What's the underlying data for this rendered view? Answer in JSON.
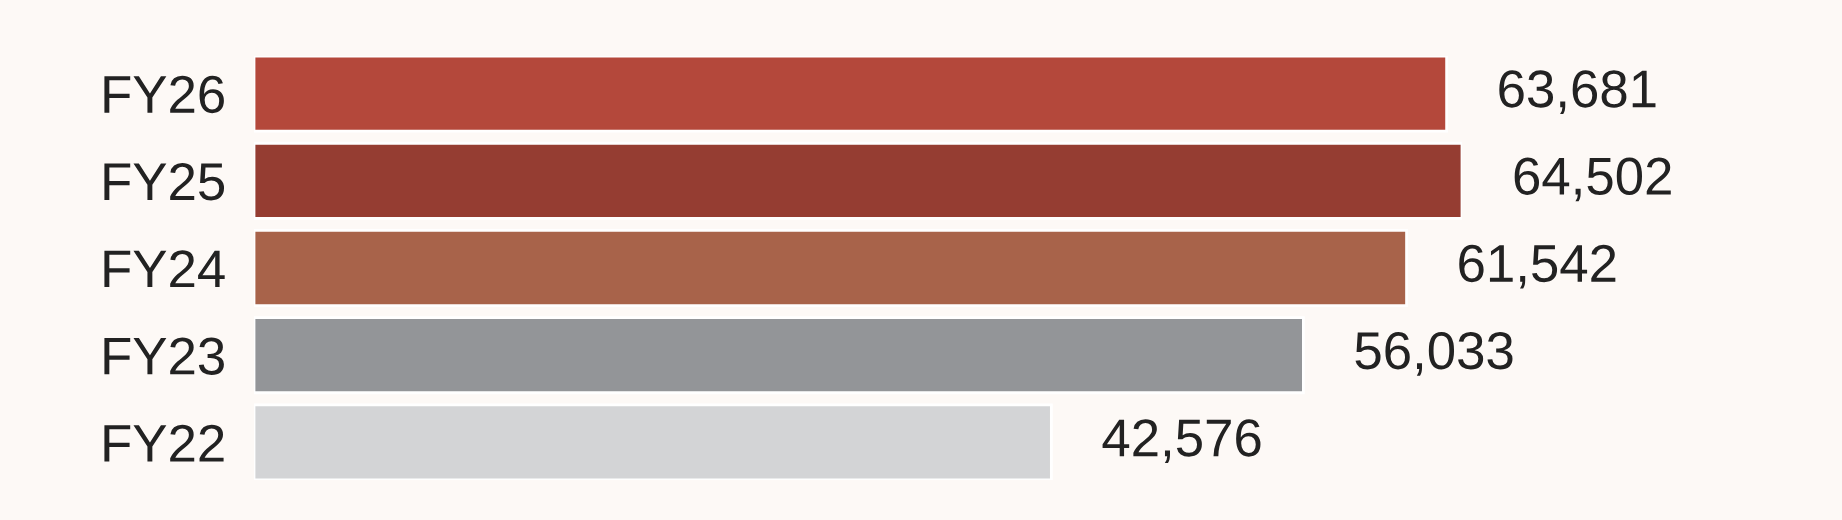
{
  "chart_data": {
    "type": "bar",
    "orientation": "horizontal",
    "categories": [
      "FY26",
      "FY25",
      "FY24",
      "FY23",
      "FY22"
    ],
    "values": [
      63681,
      64502,
      61542,
      56033,
      42576
    ],
    "colors": [
      "#b4483b",
      "#953d32",
      "#a8634a",
      "#939598",
      "#d3d4d6"
    ],
    "value_labels": [
      "63,681",
      "64,502",
      "61,542",
      "56,033",
      "42,576"
    ],
    "grid": false,
    "legend": false,
    "tick_labels": "y"
  }
}
